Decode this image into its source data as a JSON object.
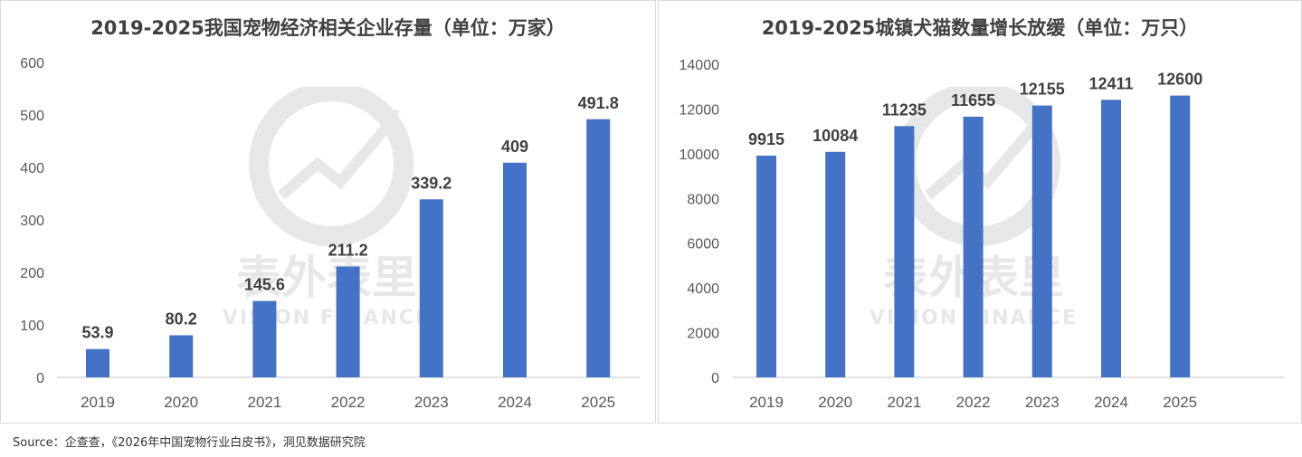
{
  "watermark": {
    "cn": "表外表里",
    "en": "VISION FINANCE"
  },
  "source": "Source：企查查，《2026年中国宠物行业白皮书》，洞见数据研究院",
  "colors": {
    "bar": "#4472c4",
    "axis": "#d9d9d9",
    "tick": "#595959",
    "label": "#404040"
  },
  "chart_data": [
    {
      "type": "bar",
      "title": "2019-2025我国宠物经济相关企业存量（单位：万家）",
      "categories": [
        "2019",
        "2020",
        "2021",
        "2022",
        "2023",
        "2024",
        "2025"
      ],
      "values": [
        53.9,
        80.2,
        145.6,
        211.2,
        339.2,
        409,
        491.8
      ],
      "value_labels": [
        "53.9",
        "80.2",
        "145.6",
        "211.2",
        "339.2",
        "409",
        "491.8"
      ],
      "yticks": [
        "0",
        "100",
        "200",
        "300",
        "400",
        "500",
        "600"
      ],
      "ylim": [
        0,
        600
      ],
      "grid": false,
      "xlabel": "",
      "ylabel": ""
    },
    {
      "type": "bar",
      "title": "2019-2025城镇犬猫数量增长放缓（单位：万只）",
      "categories": [
        "2019",
        "2020",
        "2021",
        "2022",
        "2023",
        "2024",
        "2025"
      ],
      "values": [
        9915,
        10084,
        11235,
        11655,
        12155,
        12411,
        12600
      ],
      "value_labels": [
        "9915",
        "10084",
        "11235",
        "11655",
        "12155",
        "12411",
        "12600"
      ],
      "yticks": [
        "0",
        "2000",
        "4000",
        "6000",
        "8000",
        "10000",
        "12000",
        "14000"
      ],
      "ylim": [
        0,
        14000
      ],
      "grid": false,
      "xlabel": "",
      "ylabel": ""
    }
  ]
}
